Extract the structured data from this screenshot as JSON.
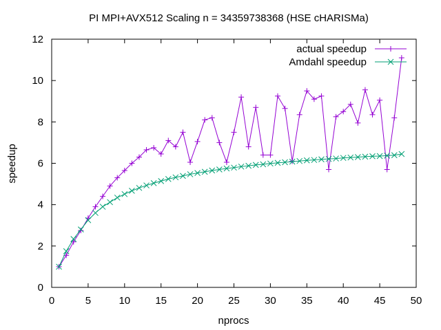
{
  "chart_data": {
    "type": "line",
    "title": "PI MPI+AVX512 Scaling n = 34359738368 (HSE cHARISMa)",
    "xlabel": "nprocs",
    "ylabel": "speedup",
    "xlim": [
      0,
      50
    ],
    "ylim": [
      0,
      12
    ],
    "xticks": [
      0,
      5,
      10,
      15,
      20,
      25,
      30,
      35,
      40,
      45,
      50
    ],
    "yticks": [
      0,
      2,
      4,
      6,
      8,
      10,
      12
    ],
    "grid": false,
    "legend_position": "top-right",
    "x": [
      1,
      2,
      3,
      4,
      5,
      6,
      7,
      8,
      9,
      10,
      11,
      12,
      13,
      14,
      15,
      16,
      17,
      18,
      19,
      20,
      21,
      22,
      23,
      24,
      25,
      26,
      27,
      28,
      29,
      30,
      31,
      32,
      33,
      34,
      35,
      36,
      37,
      38,
      39,
      40,
      41,
      42,
      43,
      44,
      45,
      46,
      47,
      48
    ],
    "series": [
      {
        "name": "actual speedup",
        "color": "#9400d3",
        "marker": "plus",
        "values": [
          1.0,
          1.55,
          2.2,
          2.75,
          3.35,
          3.9,
          4.4,
          4.9,
          5.3,
          5.65,
          6.0,
          6.3,
          6.65,
          6.75,
          6.45,
          7.1,
          6.8,
          7.5,
          6.05,
          7.05,
          8.1,
          8.2,
          7.0,
          6.05,
          7.5,
          9.2,
          6.8,
          8.7,
          6.4,
          6.4,
          9.25,
          8.65,
          6.1,
          8.35,
          9.5,
          9.1,
          9.25,
          5.7,
          8.25,
          8.5,
          8.85,
          7.95,
          9.55,
          8.35,
          9.05,
          5.7,
          8.2,
          11.1
        ]
      },
      {
        "name": "Amdahl speedup",
        "color": "#009e73",
        "marker": "cross",
        "values": [
          1.0,
          1.75,
          2.34,
          2.8,
          3.25,
          3.6,
          3.9,
          4.12,
          4.34,
          4.51,
          4.67,
          4.81,
          4.93,
          5.04,
          5.14,
          5.24,
          5.32,
          5.39,
          5.47,
          5.53,
          5.59,
          5.65,
          5.7,
          5.75,
          5.79,
          5.84,
          5.88,
          5.92,
          5.95,
          5.99,
          6.02,
          6.05,
          6.08,
          6.11,
          6.14,
          6.16,
          6.19,
          6.21,
          6.23,
          6.26,
          6.28,
          6.3,
          6.32,
          6.34,
          6.35,
          6.37,
          6.39,
          6.45
        ]
      }
    ]
  }
}
